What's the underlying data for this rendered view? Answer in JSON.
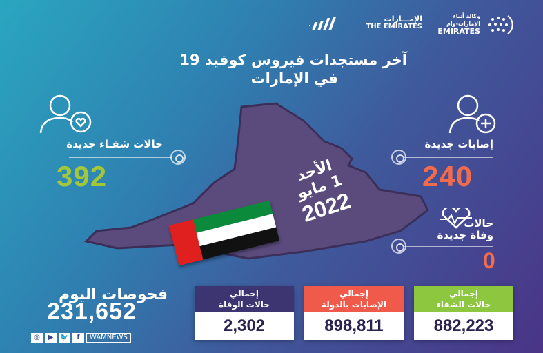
{
  "logos": {
    "wam_ar": "وكالة أنباء الإمارات-وام",
    "wam_en": "EMIRATES",
    "emirates_ar": "الإمـــارات",
    "emirates_en": "THE EMIRATES"
  },
  "title": {
    "line1": "آخر مستجدات فيروس كوفيد 19",
    "line2": "في الإمارات"
  },
  "date": {
    "day": "الأحد",
    "day_month": "1 مايو",
    "year": "2022"
  },
  "recoveries": {
    "label": "حالات شفـاء جديدة",
    "value": "392",
    "color": "#a4c639",
    "icon": "person-heart-icon"
  },
  "infections": {
    "label": "إصابات جديدة",
    "value": "240",
    "color": "#f26b4c",
    "icon": "person-plus-icon"
  },
  "deaths": {
    "label1": "حالات",
    "label2": "وفاة جديدة",
    "value": "0",
    "color": "#f26b4c",
    "icon": "heartbeat-icon"
  },
  "tests": {
    "label": "فحوصات اليوم",
    "value": "231,652"
  },
  "social": {
    "handle": "WAMNEWS",
    "icons": [
      "instagram-icon",
      "youtube-icon",
      "twitter-icon",
      "facebook-icon"
    ],
    "f": "f"
  },
  "totals": [
    {
      "line1": "إجمالي",
      "line2": "حالات الوفاة",
      "value": "2,302",
      "color": "#3d3472"
    },
    {
      "line1": "إجمالي",
      "line2": "الإصابات بالدولة",
      "value": "898,811",
      "color": "#f05a4a"
    },
    {
      "line1": "إجمالي",
      "line2": "حالات الشفاء",
      "value": "882,223",
      "color": "#8dc63f"
    }
  ]
}
